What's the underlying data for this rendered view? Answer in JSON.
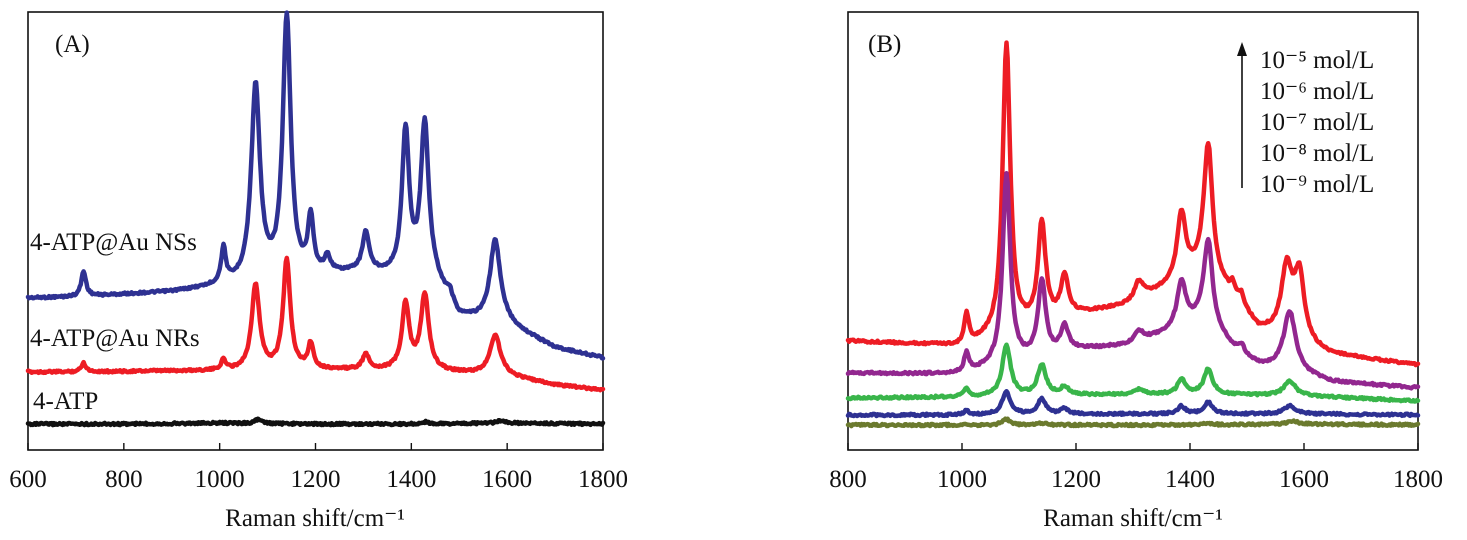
{
  "chart_data": [
    {
      "type": "line",
      "panel_label": "(A)",
      "xlabel": "Raman shift/cm⁻¹",
      "ylabel": "",
      "xlim": [
        600,
        1800
      ],
      "xticks": [
        600,
        800,
        1000,
        1200,
        1400,
        1600,
        1800
      ],
      "y_ticks_shown": false,
      "grid": false,
      "series": [
        {
          "name": "4-ATP@Au NSs",
          "color": "#2e3192",
          "baseline": [
            [
              600,
              298
            ],
            [
              700,
              297
            ],
            [
              900,
              292
            ],
            [
              1000,
              287
            ],
            [
              1100,
              282
            ],
            [
              1300,
              272
            ],
            [
              1450,
              283
            ],
            [
              1500,
              318
            ],
            [
              1600,
              325
            ],
            [
              1700,
              348
            ],
            [
              1800,
              358
            ]
          ],
          "peaks": [
            [
              716,
              25,
              6
            ],
            [
              1008,
              35,
              6
            ],
            [
              1075,
              195,
              11
            ],
            [
              1140,
              260,
              10
            ],
            [
              1190,
              55,
              7
            ],
            [
              1225,
              15,
              8
            ],
            [
              1305,
              38,
              8
            ],
            [
              1388,
              145,
              9
            ],
            [
              1428,
              155,
              10
            ],
            [
              1480,
              10,
              8
            ],
            [
              1575,
              82,
              13
            ]
          ]
        },
        {
          "name": "4-ATP@Au NRs",
          "color": "#ed1c24",
          "baseline": [
            [
              600,
              372
            ],
            [
              700,
              372
            ],
            [
              900,
              371
            ],
            [
              1000,
              371
            ],
            [
              1200,
              370
            ],
            [
              1400,
              370
            ],
            [
              1600,
              376
            ],
            [
              1700,
              385
            ],
            [
              1800,
              390
            ]
          ],
          "peaks": [
            [
              716,
              9,
              6
            ],
            [
              1008,
              10,
              6
            ],
            [
              1075,
              85,
              10
            ],
            [
              1140,
              110,
              9
            ],
            [
              1190,
              25,
              7
            ],
            [
              1305,
              15,
              8
            ],
            [
              1388,
              65,
              9
            ],
            [
              1428,
              75,
              10
            ],
            [
              1575,
              40,
              13
            ]
          ]
        },
        {
          "name": "4-ATP",
          "color": "#111111",
          "baseline": [
            [
              600,
              424
            ],
            [
              800,
              424
            ],
            [
              1000,
              423
            ],
            [
              1200,
              424
            ],
            [
              1400,
              424
            ],
            [
              1600,
              423
            ],
            [
              1800,
              424
            ]
          ],
          "peaks": [
            [
              1080,
              4,
              8
            ],
            [
              1430,
              2,
              8
            ],
            [
              1585,
              2,
              10
            ]
          ]
        }
      ]
    },
    {
      "type": "line",
      "panel_label": "(B)",
      "xlabel": "Raman shift/cm⁻¹",
      "ylabel": "",
      "xlim": [
        800,
        1800
      ],
      "xticks": [
        800,
        1000,
        1200,
        1400,
        1600,
        1800
      ],
      "y_ticks_shown": false,
      "grid": false,
      "legend": {
        "position": "top-right",
        "arrow": "up",
        "entries": [
          "10⁻⁵ mol/L",
          "10⁻⁶ mol/L",
          "10⁻⁷ mol/L",
          "10⁻⁸ mol/L",
          "10⁻⁹ mol/L"
        ]
      },
      "series": [
        {
          "name": "10⁻⁵ mol/L",
          "color": "#ed1c24",
          "baseline": [
            [
              800,
              341
            ],
            [
              950,
              345
            ],
            [
              1000,
              347
            ],
            [
              1200,
              315
            ],
            [
              1300,
              305
            ],
            [
              1350,
              290
            ],
            [
              1420,
              270
            ],
            [
              1480,
              300
            ],
            [
              1520,
              330
            ],
            [
              1650,
              355
            ],
            [
              1800,
              365
            ]
          ],
          "peaks": [
            [
              1008,
              30,
              5
            ],
            [
              1078,
              290,
              8
            ],
            [
              1140,
              100,
              8
            ],
            [
              1180,
              40,
              8
            ],
            [
              1310,
              20,
              10
            ],
            [
              1385,
              65,
              9
            ],
            [
              1432,
              130,
              9
            ],
            [
              1475,
              10,
              5
            ],
            [
              1490,
              10,
              5
            ],
            [
              1570,
              70,
              12
            ],
            [
              1592,
              65,
              10
            ]
          ]
        },
        {
          "name": "10⁻⁶ mol/L",
          "color": "#92278f",
          "baseline": [
            [
              800,
              373
            ],
            [
              950,
              374
            ],
            [
              1000,
              374
            ],
            [
              1200,
              350
            ],
            [
              1300,
              345
            ],
            [
              1420,
              320
            ],
            [
              1480,
              350
            ],
            [
              1520,
              365
            ],
            [
              1650,
              382
            ],
            [
              1800,
              388
            ]
          ],
          "peaks": [
            [
              1008,
              20,
              5
            ],
            [
              1078,
              190,
              8
            ],
            [
              1140,
              75,
              8
            ],
            [
              1180,
              25,
              8
            ],
            [
              1310,
              12,
              10
            ],
            [
              1385,
              45,
              9
            ],
            [
              1432,
              85,
              9
            ],
            [
              1490,
              8,
              5
            ],
            [
              1575,
              60,
              13
            ]
          ]
        },
        {
          "name": "10⁻⁷ mol/L",
          "color": "#39b54a",
          "baseline": [
            [
              800,
              398
            ],
            [
              1000,
              397
            ],
            [
              1200,
              395
            ],
            [
              1400,
              394
            ],
            [
              1600,
              396
            ],
            [
              1800,
              401
            ]
          ],
          "peaks": [
            [
              1008,
              8,
              5
            ],
            [
              1078,
              50,
              9
            ],
            [
              1140,
              30,
              9
            ],
            [
              1180,
              8,
              8
            ],
            [
              1310,
              5,
              10
            ],
            [
              1385,
              15,
              8
            ],
            [
              1432,
              25,
              9
            ],
            [
              1575,
              15,
              12
            ]
          ]
        },
        {
          "name": "10⁻⁸ mol/L",
          "color": "#2e3192",
          "baseline": [
            [
              800,
              415
            ],
            [
              1000,
              415
            ],
            [
              1200,
              414
            ],
            [
              1400,
              414
            ],
            [
              1600,
              414
            ],
            [
              1800,
              415
            ]
          ],
          "peaks": [
            [
              1008,
              5,
              5
            ],
            [
              1078,
              22,
              9
            ],
            [
              1140,
              15,
              9
            ],
            [
              1180,
              5,
              8
            ],
            [
              1385,
              8,
              8
            ],
            [
              1432,
              12,
              9
            ],
            [
              1575,
              8,
              12
            ]
          ]
        },
        {
          "name": "10⁻⁹ mol/L",
          "color": "#6b7a2e",
          "baseline": [
            [
              800,
              425
            ],
            [
              1000,
              425
            ],
            [
              1200,
              425
            ],
            [
              1400,
              425
            ],
            [
              1600,
              424
            ],
            [
              1800,
              425
            ]
          ],
          "peaks": [
            [
              1078,
              6,
              8
            ],
            [
              1140,
              2,
              8
            ],
            [
              1432,
              2,
              8
            ],
            [
              1580,
              3,
              12
            ]
          ]
        }
      ]
    }
  ],
  "panelA_series_labels": [
    "4-ATP@Au NSs",
    "4-ATP@Au NRs",
    "4-ATP"
  ]
}
